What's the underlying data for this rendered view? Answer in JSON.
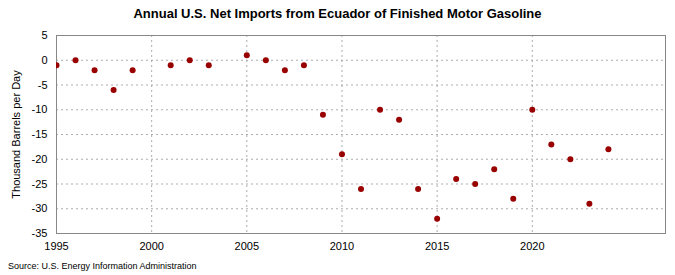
{
  "chart_data": {
    "type": "scatter",
    "title": "Annual U.S. Net Imports from Ecuador of Finished Motor Gasoline",
    "y_label": "Thousand Barrels per Day",
    "caption": "Source: U.S. Energy Information Administration",
    "x": [
      1995,
      1996,
      1997,
      1998,
      1999,
      2001,
      2002,
      2003,
      2005,
      2006,
      2007,
      2008,
      2009,
      2010,
      2011,
      2012,
      2013,
      2014,
      2015,
      2016,
      2017,
      2018,
      2019,
      2020,
      2021,
      2022,
      2023,
      2024
    ],
    "values": [
      -1,
      0,
      -2,
      -6,
      -2,
      -1,
      0,
      -1,
      1,
      0,
      -2,
      -1,
      -11,
      -19,
      -26,
      -10,
      -12,
      -26,
      -32,
      -24,
      -25,
      -22,
      -28,
      -10,
      -17,
      -20,
      -29,
      -18
    ],
    "color": "#990000",
    "marker": "circle",
    "xlim": [
      1995,
      2027
    ],
    "xticks": [
      1995,
      2000,
      2005,
      2010,
      2015,
      2020
    ],
    "ylim": [
      -35,
      5
    ],
    "yticks": [
      -35,
      -30,
      -25,
      -20,
      -15,
      -10,
      -5,
      0,
      5
    ],
    "grid": true
  }
}
